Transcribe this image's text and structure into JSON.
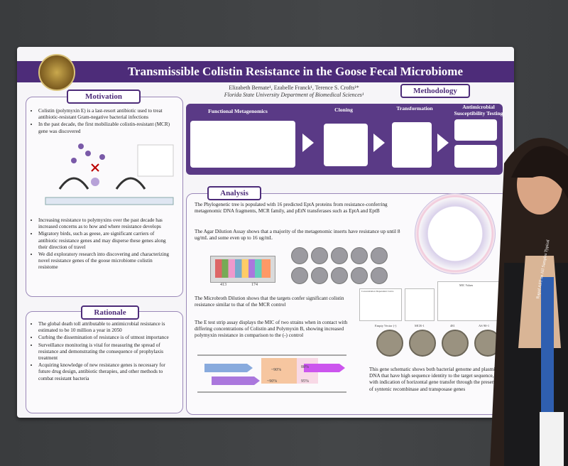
{
  "poster": {
    "title": "Transmissible Colistin Resistance in the Goose Fecal Microbiome",
    "authors": "Elizabeth Bernate¹, Ezabelle Franck¹, Terence S. Crofts¹*",
    "department": "Florida State University Department of Biomedical Sciences¹",
    "sections": {
      "motivation": "Motivation",
      "methodology": "Methodology",
      "analysis": "Analysis",
      "rationale": "Rationale"
    },
    "motivation_top": [
      "Colistin (polymyxin E) is a last-resort antibiotic used to treat antibiotic-resistant Gram-negative bacterial infections",
      "In the past decade, the first mobilizable colistin-resistant (MCR) gene was discovered"
    ],
    "motivation_bottom": [
      "Increasing resistance to polymyxins over the past decade has increased concerns as to how and where resistance develops",
      "Migratory birds, such as geese, are significant carriers of antibiotic resistance genes and may disperse these genes along their direction of travel",
      "We did exploratory research into discovering and characterizing novel resistance genes of the goose microbiome colistin resistome"
    ],
    "rationale": [
      "The global death toll attributable to antimicrobial resistance is estimated to be 10 million a year in 2050",
      "Curbing the dissemination of resistance is of utmost importance",
      "Surveillance monitoring is vital for measuring the spread of resistance and demonstrating the consequence of prophylaxis treatment",
      "Acquiring knowledge of new resistance genes is necessary for future drug design, antibiotic therapies, and other methods to combat resistant bacteria"
    ],
    "methods": [
      "Functional Metagenomics",
      "Cloning",
      "Transformation",
      "Antimicrobial Susceptibility Testing"
    ],
    "analysis": {
      "phylo": "The Phylogenetic tree is populated with 16 predicted EptA proteins from resistance-conferring metagenomic DNA fragments, MCR family, and pEtN transferases such as EptA and EptB",
      "agar": "The Agar Dilution Assay shows that a majority of the metagenomic inserts have resistance up until 8 ug/mL and some even up to 16 ug/mL",
      "broth": "The Microbroth Dilution shows that the targets confer significant colistin resistance similar to that of the MCR control",
      "etest": "The E test strip assay displays the MIC of two strains when in contact with differing concentrations of Colistin and Polymyxin B, showing increased polymyxin resistance in comparison to the (-) control",
      "gene": "This gene schematic shows both bacterial genome and plasmid DNA that have high sequence identity to the target sequence, with indication of horizontal gene transfer through the presence of syntenic recombinase and transposase genes",
      "plate_labels": [
        "413",
        "174"
      ],
      "chart_titles": [
        "Concentration Dependent Curve",
        "MIC Values"
      ],
      "identity": [
        "~90%",
        "88%",
        "~90%",
        "95%"
      ],
      "etest_labels": [
        "Empty Vector (-)",
        "MCR-1",
        "481",
        "AS 90-1"
      ]
    },
    "badge": "Rapid AST on All Samples Typical",
    "colors": {
      "purple": "#4d2c79",
      "accent": "#f2c7d9"
    }
  }
}
